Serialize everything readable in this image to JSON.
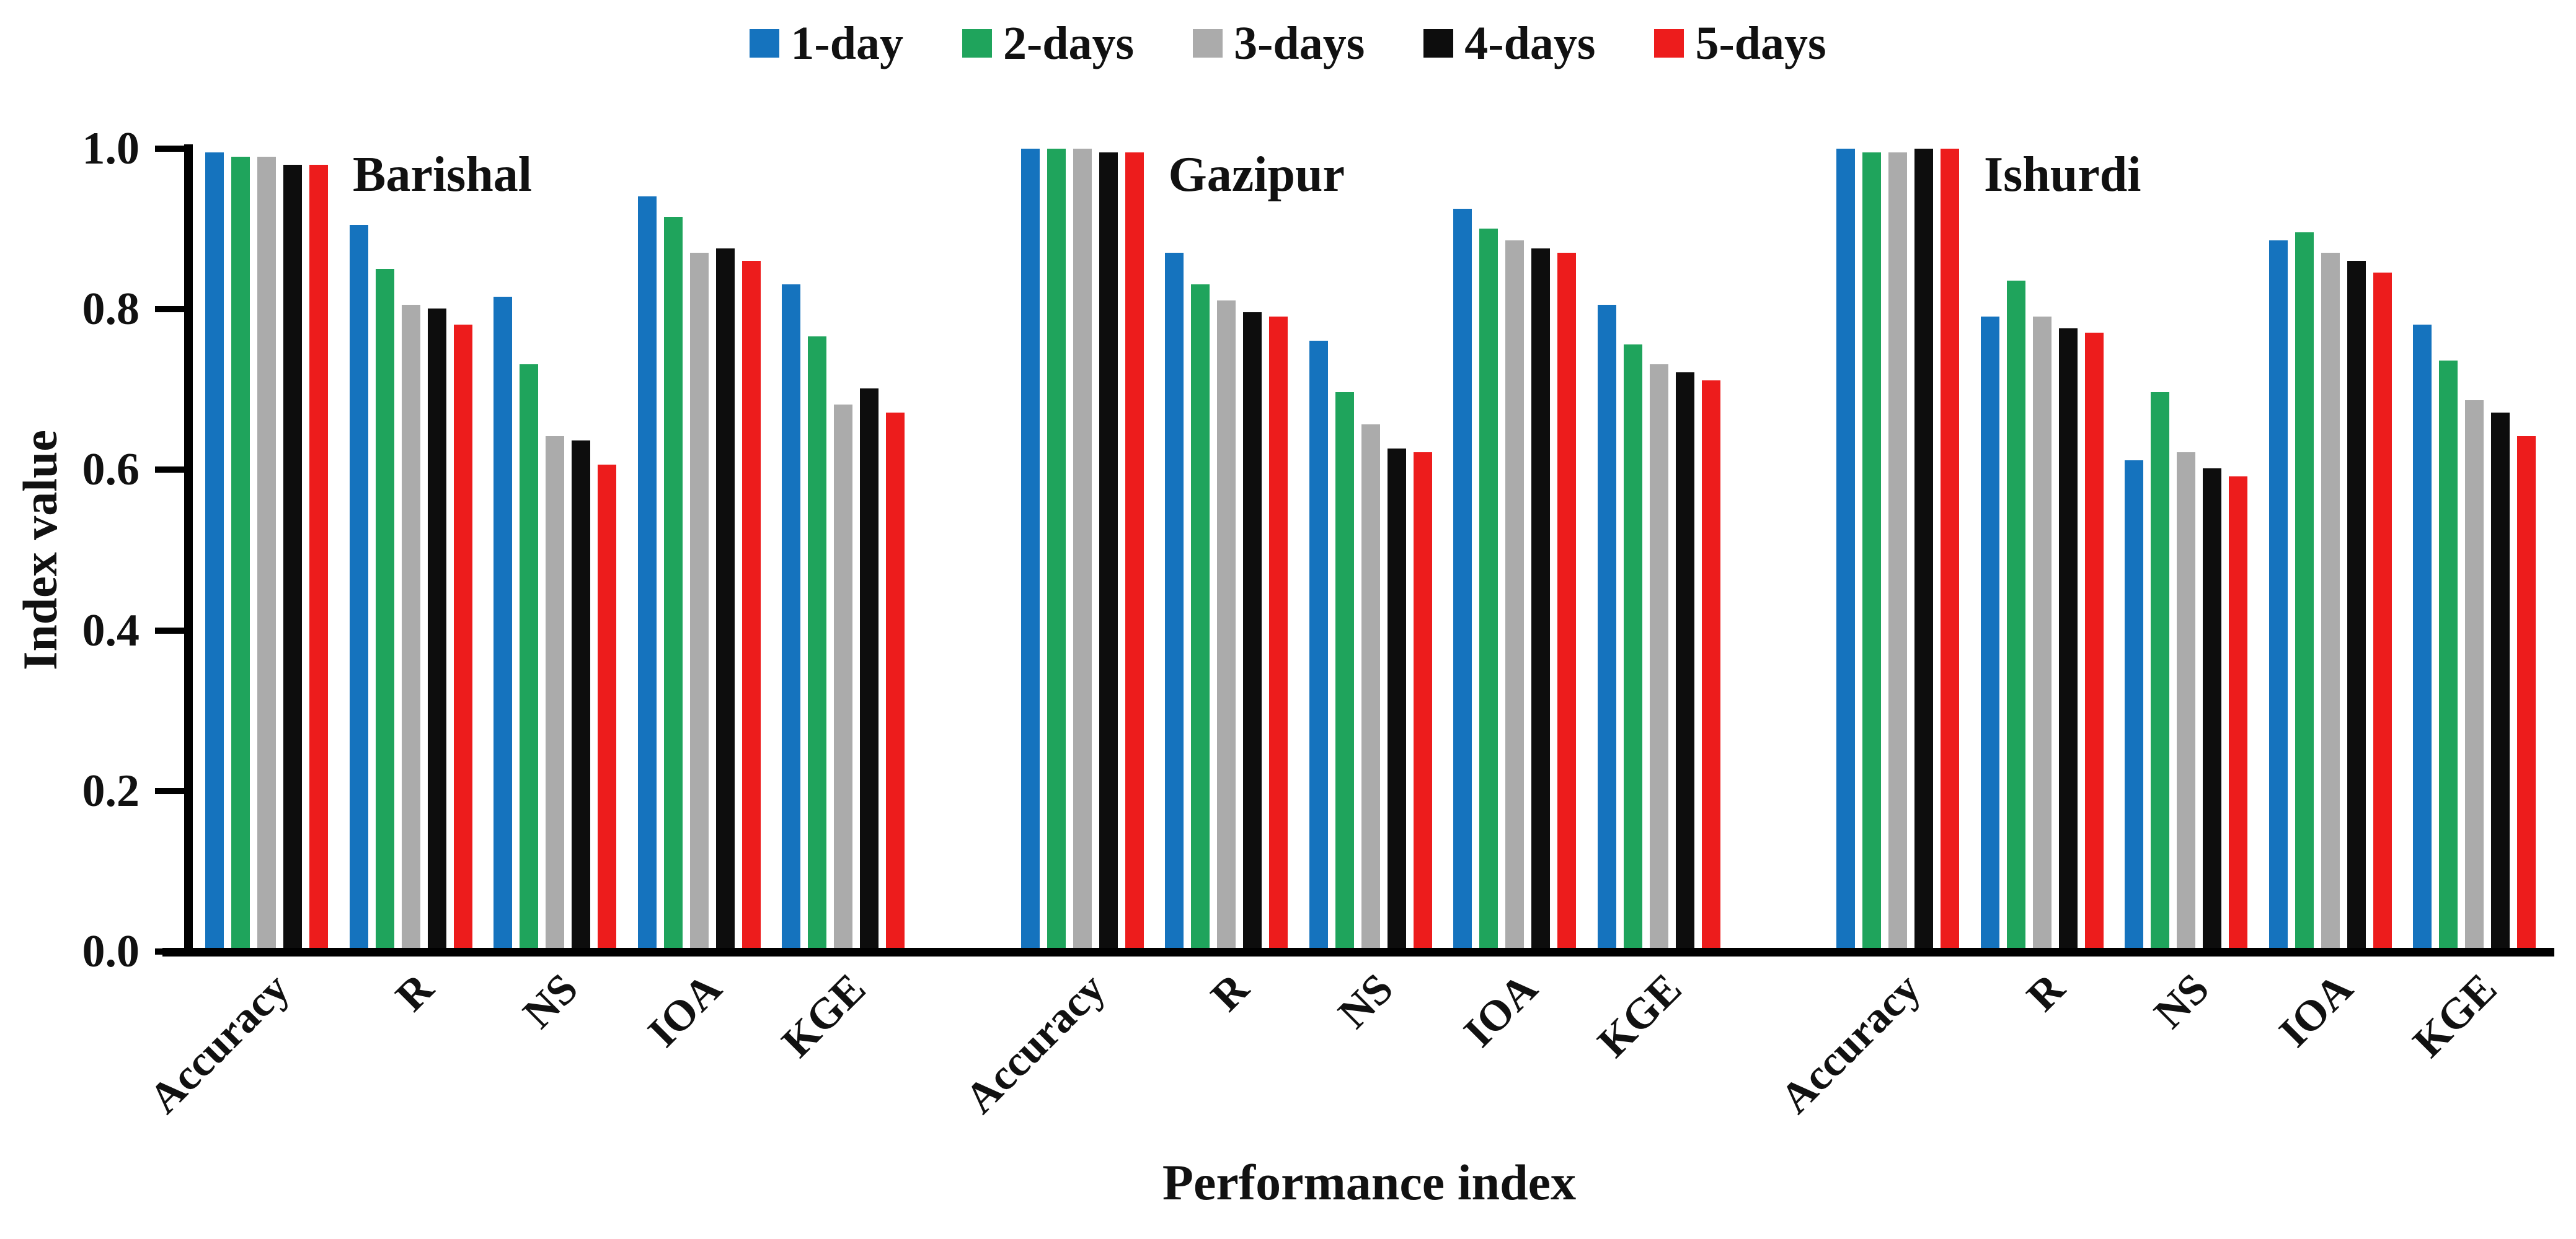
{
  "legend": {
    "items": [
      {
        "label": "1-day",
        "color": "#1573BE"
      },
      {
        "label": "2-days",
        "color": "#1FA45C"
      },
      {
        "label": "3-days",
        "color": "#ABABAB"
      },
      {
        "label": "4-days",
        "color": "#0D0D0D"
      },
      {
        "label": "5-days",
        "color": "#ED1C1C"
      }
    ]
  },
  "y_axis": {
    "title": "Index value"
  },
  "x_axis": {
    "title": "Performance index"
  },
  "chart_data": {
    "type": "bar",
    "title": "",
    "xlabel": "Performance index",
    "ylabel": "Index value",
    "ylim": [
      0.0,
      1.0
    ],
    "yticks": [
      0.0,
      0.2,
      0.4,
      0.6,
      0.8,
      1.0
    ],
    "grid": false,
    "legend_position": "top-center",
    "categories": [
      "Accuracy",
      "R",
      "NS",
      "IOA",
      "KGE"
    ],
    "series_names": [
      "1-day",
      "2-days",
      "3-days",
      "4-days",
      "5-days"
    ],
    "groups": [
      {
        "station": "Barishal",
        "series": [
          {
            "name": "1-day",
            "values": [
              0.995,
              0.905,
              0.815,
              0.94,
              0.83
            ]
          },
          {
            "name": "2-days",
            "values": [
              0.99,
              0.85,
              0.73,
              0.915,
              0.765
            ]
          },
          {
            "name": "3-days",
            "values": [
              0.99,
              0.805,
              0.64,
              0.87,
              0.68
            ]
          },
          {
            "name": "4-days",
            "values": [
              0.98,
              0.8,
              0.635,
              0.875,
              0.7
            ]
          },
          {
            "name": "5-days",
            "values": [
              0.98,
              0.78,
              0.605,
              0.86,
              0.67
            ]
          }
        ]
      },
      {
        "station": "Gazipur",
        "series": [
          {
            "name": "1-day",
            "values": [
              1.0,
              0.87,
              0.76,
              0.925,
              0.805
            ]
          },
          {
            "name": "2-days",
            "values": [
              1.0,
              0.83,
              0.695,
              0.9,
              0.755
            ]
          },
          {
            "name": "3-days",
            "values": [
              1.0,
              0.81,
              0.655,
              0.885,
              0.73
            ]
          },
          {
            "name": "4-days",
            "values": [
              0.995,
              0.795,
              0.625,
              0.875,
              0.72
            ]
          },
          {
            "name": "5-days",
            "values": [
              0.995,
              0.79,
              0.62,
              0.87,
              0.71
            ]
          }
        ]
      },
      {
        "station": "Ishurdi",
        "series": [
          {
            "name": "1-day",
            "values": [
              1.0,
              0.79,
              0.61,
              0.885,
              0.78
            ]
          },
          {
            "name": "2-days",
            "values": [
              0.995,
              0.835,
              0.695,
              0.895,
              0.735
            ]
          },
          {
            "name": "3-days",
            "values": [
              0.995,
              0.79,
              0.62,
              0.87,
              0.685
            ]
          },
          {
            "name": "4-days",
            "values": [
              1.0,
              0.775,
              0.6,
              0.86,
              0.67
            ]
          },
          {
            "name": "5-days",
            "values": [
              1.0,
              0.77,
              0.59,
              0.845,
              0.64
            ]
          }
        ]
      }
    ]
  }
}
